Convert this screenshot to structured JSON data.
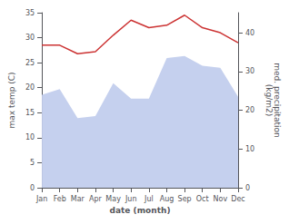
{
  "chart_data": {
    "type": "line",
    "categories": [
      "Jan",
      "Feb",
      "Mar",
      "Apr",
      "May",
      "Jun",
      "Jul",
      "Aug",
      "Sep",
      "Oct",
      "Nov",
      "Dec"
    ],
    "series": [
      {
        "type": "area",
        "axis": "y2",
        "color": "#c5d0ee",
        "values": [
          24.0,
          25.5,
          18.0,
          18.5,
          27.0,
          23.0,
          23.0,
          33.5,
          34.0,
          31.5,
          31.0,
          23.5
        ]
      },
      {
        "type": "line",
        "color": "#cc3333",
        "values": [
          28.5,
          28.5,
          26.8,
          27.2,
          30.5,
          33.5,
          32.0,
          32.5,
          34.5,
          32.0,
          31.0,
          29.0
        ]
      }
    ],
    "xlabel": "date (month)",
    "ylabel": "max temp (C)",
    "y2label": "med. precipitation\n(kg/m2)",
    "ylim": [
      0,
      35
    ],
    "yticks": [
      0,
      5,
      10,
      15,
      20,
      25,
      30,
      35
    ],
    "y2lim": [
      0,
      45.208
    ],
    "y2ticks": [
      0,
      10,
      20,
      30,
      40
    ],
    "grid": false
  }
}
